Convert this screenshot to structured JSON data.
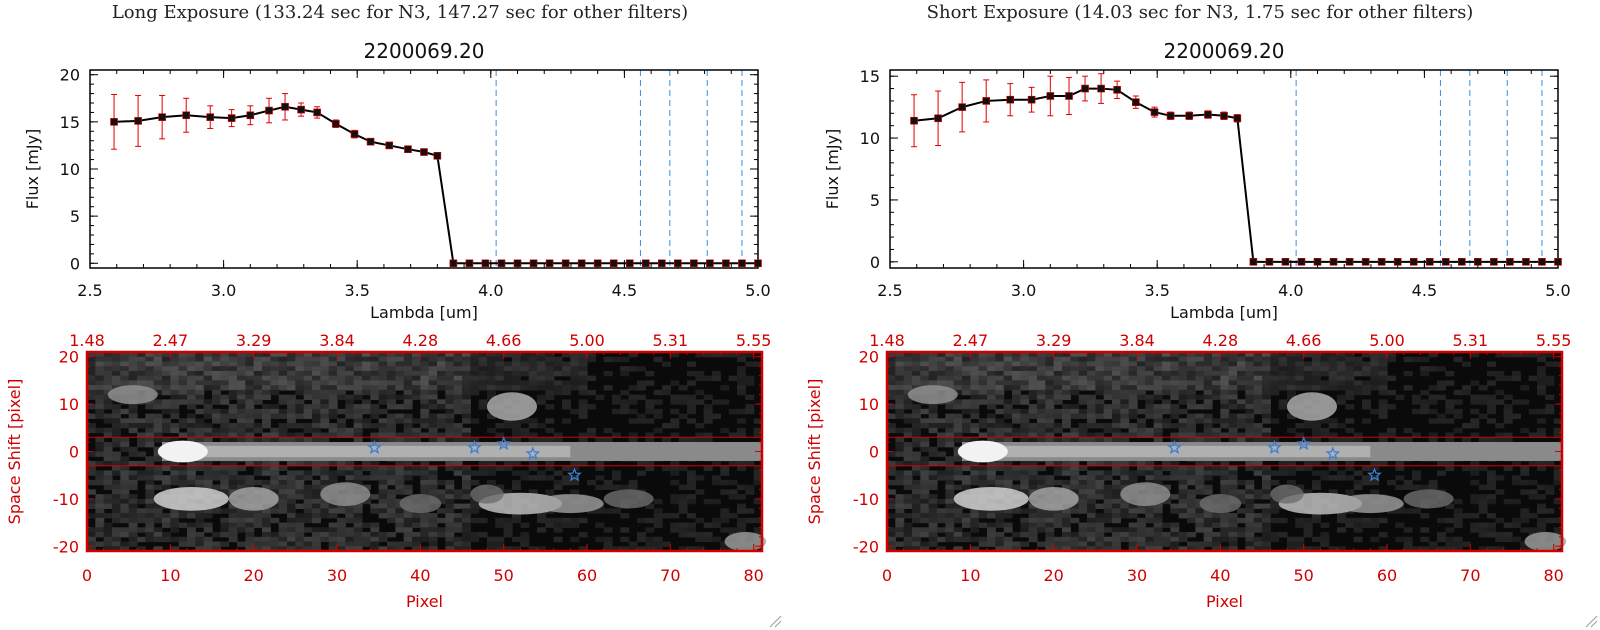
{
  "colors": {
    "data": "#000000",
    "error_bars": "#e00000",
    "filter_lines": "#3a8fe0",
    "spectrum_axes": "#d00000",
    "stars": "#3a7fd8",
    "zero_line": "#e00000"
  },
  "panels": [
    {
      "title": "Long Exposure (133.24 sec for N3, 147.27 sec for other filters)",
      "plot_title": "2200069.20",
      "xlabel": "Lambda [um]",
      "ylabel": "Flux [mJy]",
      "xlim": [
        2.5,
        5.0
      ],
      "ylim": [
        -0.5,
        20.5
      ],
      "xticks": [
        "2.5",
        "3.0",
        "3.5",
        "4.0",
        "4.5",
        "5.0"
      ],
      "yticks": [
        "0",
        "5",
        "10",
        "15",
        "20"
      ],
      "image_xlabel": "Pixel",
      "image_ylabel": "Space Shift [pixel]",
      "image_xticks": [
        "0",
        "10",
        "20",
        "30",
        "40",
        "50",
        "60",
        "70",
        "80"
      ],
      "image_yticks": [
        "20",
        "10",
        "0",
        "-10",
        "-20"
      ],
      "image_top_ticks": [
        "1.48",
        "2.47",
        "3.29",
        "3.84",
        "4.28",
        "4.66",
        "5.00",
        "5.31",
        "5.55"
      ]
    },
    {
      "title": "Short Exposure (14.03 sec for N3, 1.75 sec for other filters)",
      "plot_title": "2200069.20",
      "xlabel": "Lambda [um]",
      "ylabel": "Flux [mJy]",
      "xlim": [
        2.5,
        5.0
      ],
      "ylim": [
        -0.5,
        15.5
      ],
      "xticks": [
        "2.5",
        "3.0",
        "3.5",
        "4.0",
        "4.5",
        "5.0"
      ],
      "yticks": [
        "0",
        "5",
        "10",
        "15"
      ],
      "image_xlabel": "Pixel",
      "image_ylabel": "Space Shift [pixel]",
      "image_xticks": [
        "0",
        "10",
        "20",
        "30",
        "40",
        "50",
        "60",
        "70",
        "80"
      ],
      "image_yticks": [
        "20",
        "10",
        "0",
        "-10",
        "-20"
      ],
      "image_top_ticks": [
        "1.48",
        "2.47",
        "3.29",
        "3.84",
        "4.28",
        "4.66",
        "5.00",
        "5.31",
        "5.55"
      ]
    }
  ],
  "chart_data": [
    {
      "type": "line",
      "title": "2200069.20",
      "xlabel": "Lambda [um]",
      "ylabel": "Flux [mJy]",
      "xlim": [
        2.5,
        5.0
      ],
      "ylim": [
        -0.5,
        20.5
      ],
      "x": [
        2.59,
        2.68,
        2.77,
        2.86,
        2.95,
        3.03,
        3.1,
        3.17,
        3.23,
        3.29,
        3.35,
        3.42,
        3.49,
        3.55,
        3.62,
        3.69,
        3.75,
        3.8,
        3.86,
        3.92,
        3.98,
        4.04,
        4.1,
        4.16,
        4.22,
        4.28,
        4.34,
        4.4,
        4.46,
        4.52,
        4.58,
        4.64,
        4.7,
        4.76,
        4.82,
        4.88,
        4.94,
        5.0
      ],
      "y": [
        15.0,
        15.1,
        15.5,
        15.7,
        15.5,
        15.4,
        15.7,
        16.2,
        16.6,
        16.3,
        16.0,
        14.8,
        13.7,
        12.9,
        12.5,
        12.1,
        11.8,
        11.4,
        0,
        0,
        0,
        0,
        0,
        0,
        0,
        0,
        0,
        0,
        0,
        0,
        0,
        0,
        0,
        0,
        0,
        0,
        0,
        0
      ],
      "yerr": [
        2.9,
        2.7,
        2.3,
        1.8,
        1.2,
        0.9,
        1.0,
        1.3,
        1.4,
        0.7,
        0.6,
        0.4,
        0.4,
        0.3,
        0.3,
        0.3,
        0.3,
        0.3,
        0,
        0,
        0,
        0,
        0,
        0,
        0,
        0,
        0,
        0,
        0,
        0,
        0,
        0,
        0,
        0,
        0,
        0,
        0,
        0
      ],
      "filter_lines": [
        4.02,
        4.56,
        4.67,
        4.81,
        4.94
      ]
    },
    {
      "type": "line",
      "title": "2200069.20",
      "xlabel": "Lambda [um]",
      "ylabel": "Flux [mJy]",
      "xlim": [
        2.5,
        5.0
      ],
      "ylim": [
        -0.5,
        15.5
      ],
      "x": [
        2.59,
        2.68,
        2.77,
        2.86,
        2.95,
        3.03,
        3.1,
        3.17,
        3.23,
        3.29,
        3.35,
        3.42,
        3.49,
        3.55,
        3.62,
        3.69,
        3.75,
        3.8,
        3.86,
        3.92,
        3.98,
        4.04,
        4.1,
        4.16,
        4.22,
        4.28,
        4.34,
        4.4,
        4.46,
        4.52,
        4.58,
        4.64,
        4.7,
        4.76,
        4.82,
        4.88,
        4.94,
        5.0
      ],
      "y": [
        11.4,
        11.6,
        12.5,
        13.0,
        13.1,
        13.1,
        13.4,
        13.4,
        14.0,
        14.0,
        13.9,
        12.9,
        12.1,
        11.8,
        11.8,
        11.9,
        11.8,
        11.6,
        0,
        0,
        0,
        0,
        0,
        0,
        0,
        0,
        0,
        0,
        0,
        0,
        0,
        0,
        0,
        0,
        0,
        0,
        0,
        0
      ],
      "yerr": [
        2.1,
        2.2,
        2.0,
        1.7,
        1.3,
        1.0,
        1.6,
        1.5,
        1.0,
        1.2,
        0.7,
        0.5,
        0.4,
        0.3,
        0.3,
        0.3,
        0.3,
        0.3,
        0,
        0,
        0,
        0,
        0,
        0,
        0,
        0,
        0,
        0,
        0,
        0,
        0,
        0,
        0,
        0,
        0,
        0,
        0,
        0
      ],
      "filter_lines": [
        4.02,
        4.56,
        4.67,
        4.81,
        4.94
      ]
    },
    {
      "type": "heatmap",
      "xlabel": "Pixel",
      "ylabel": "Space Shift [pixel]",
      "xlim": [
        0,
        81
      ],
      "ylim": [
        -21,
        21
      ],
      "aperture": [
        -3,
        3
      ],
      "stars": [
        {
          "x": 34.5,
          "y": 0.8
        },
        {
          "x": 46.5,
          "y": 0.8
        },
        {
          "x": 50,
          "y": 1.6
        },
        {
          "x": 53.5,
          "y": -0.5
        },
        {
          "x": 58.5,
          "y": -5
        }
      ]
    },
    {
      "type": "heatmap",
      "xlabel": "Pixel",
      "ylabel": "Space Shift [pixel]",
      "xlim": [
        0,
        81
      ],
      "ylim": [
        -21,
        21
      ],
      "aperture": [
        -3,
        3
      ],
      "stars": [
        {
          "x": 34.5,
          "y": 0.8
        },
        {
          "x": 46.5,
          "y": 0.8
        },
        {
          "x": 50,
          "y": 1.6
        },
        {
          "x": 53.5,
          "y": -0.5
        },
        {
          "x": 58.5,
          "y": -5
        }
      ]
    }
  ]
}
